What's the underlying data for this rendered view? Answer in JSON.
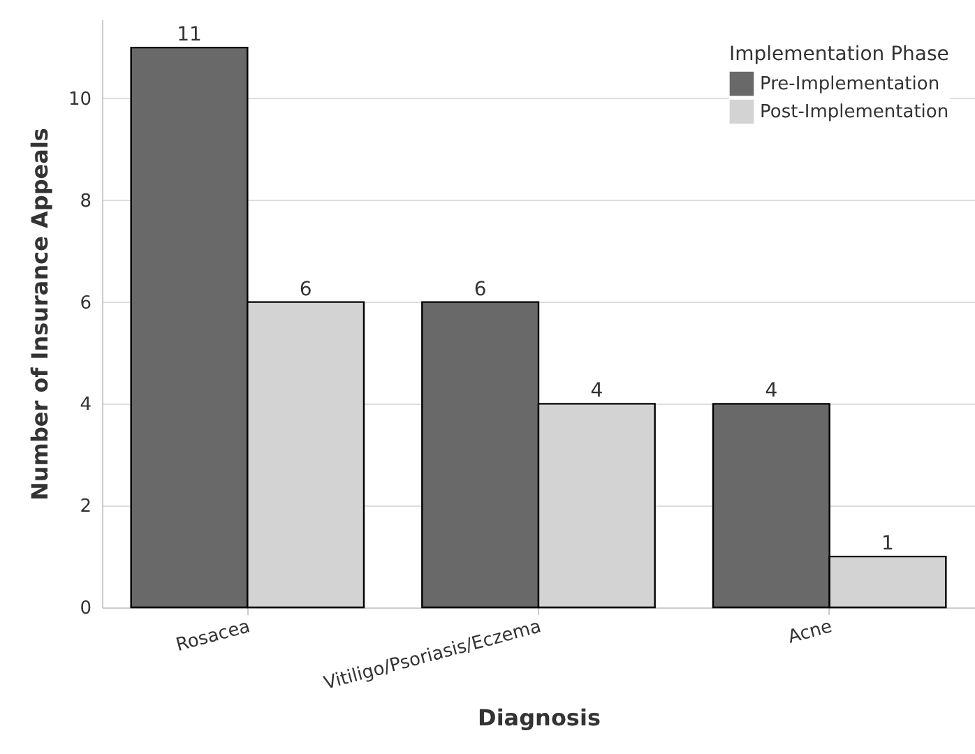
{
  "chart_data": {
    "type": "bar",
    "xlabel": "Diagnosis",
    "ylabel": "Number of Insurance Appeals",
    "legend_title": "Implementation Phase",
    "categories": [
      "Rosacea",
      "Vitiligo/Psoriasis/Eczema",
      "Acne"
    ],
    "series": [
      {
        "name": "Pre-Implementation",
        "color": "#696969",
        "values": [
          11,
          6,
          4
        ]
      },
      {
        "name": "Post-Implementation",
        "color": "#d3d3d3",
        "values": [
          6,
          4,
          1
        ]
      }
    ],
    "ylim": [
      0,
      11.55
    ],
    "yticks": [
      0,
      2,
      4,
      6,
      8,
      10
    ],
    "grid": "y",
    "legend": "top right",
    "data_labels": true
  }
}
